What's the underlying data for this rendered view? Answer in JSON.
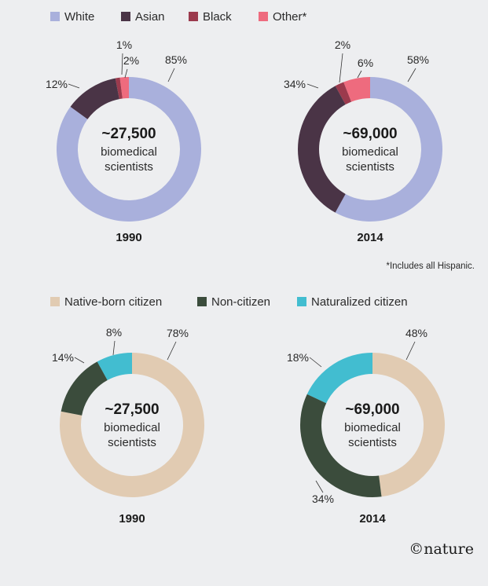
{
  "chart_data": [
    {
      "type": "pie",
      "variant": "donut",
      "panel": "race",
      "year": "1990",
      "center_total": "~27,500",
      "center_line1": "biomedical",
      "center_line2": "scientists",
      "slices": [
        {
          "name": "White",
          "value": 85,
          "label": "85%",
          "color": "#a9b0dc"
        },
        {
          "name": "Asian",
          "value": 12,
          "label": "12%",
          "color": "#4a3446"
        },
        {
          "name": "Black",
          "value": 1,
          "label": "1%",
          "color": "#9b3a4d"
        },
        {
          "name": "Other*",
          "value": 2,
          "label": "2%",
          "color": "#ee6b7e"
        }
      ]
    },
    {
      "type": "pie",
      "variant": "donut",
      "panel": "race",
      "year": "2014",
      "center_total": "~69,000",
      "center_line1": "biomedical",
      "center_line2": "scientists",
      "slices": [
        {
          "name": "White",
          "value": 58,
          "label": "58%",
          "color": "#a9b0dc"
        },
        {
          "name": "Asian",
          "value": 34,
          "label": "34%",
          "color": "#4a3446"
        },
        {
          "name": "Black",
          "value": 2,
          "label": "2%",
          "color": "#9b3a4d"
        },
        {
          "name": "Other*",
          "value": 6,
          "label": "6%",
          "color": "#ee6b7e"
        }
      ]
    },
    {
      "type": "pie",
      "variant": "donut",
      "panel": "citizenship",
      "year": "1990",
      "center_total": "~27,500",
      "center_line1": "biomedical",
      "center_line2": "scientists",
      "slices": [
        {
          "name": "Native-born citizen",
          "value": 78,
          "label": "78%",
          "color": "#e1cbb2"
        },
        {
          "name": "Non-citizen",
          "value": 14,
          "label": "14%",
          "color": "#3b4c3c"
        },
        {
          "name": "Naturalized citizen",
          "value": 8,
          "label": "8%",
          "color": "#42bdd0"
        }
      ]
    },
    {
      "type": "pie",
      "variant": "donut",
      "panel": "citizenship",
      "year": "2014",
      "center_total": "~69,000",
      "center_line1": "biomedical",
      "center_line2": "scientists",
      "slices": [
        {
          "name": "Native-born citizen",
          "value": 48,
          "label": "48%",
          "color": "#e1cbb2"
        },
        {
          "name": "Non-citizen",
          "value": 34,
          "label": "34%",
          "color": "#3b4c3c"
        },
        {
          "name": "Naturalized citizen",
          "value": 18,
          "label": "18%",
          "color": "#42bdd0"
        }
      ]
    }
  ],
  "legends": {
    "race": [
      {
        "label": "White",
        "color": "#a9b0dc"
      },
      {
        "label": "Asian",
        "color": "#4a3446"
      },
      {
        "label": "Black",
        "color": "#9b3a4d"
      },
      {
        "label": "Other*",
        "color": "#ee6b7e"
      }
    ],
    "citizenship": [
      {
        "label": "Native-born citizen",
        "color": "#e1cbb2"
      },
      {
        "label": "Non-citizen",
        "color": "#3b4c3c"
      },
      {
        "label": "Naturalized citizen",
        "color": "#42bdd0"
      }
    ]
  },
  "footnote": "*Includes all Hispanic.",
  "credit": "©nature",
  "background_color": "#edeef0"
}
